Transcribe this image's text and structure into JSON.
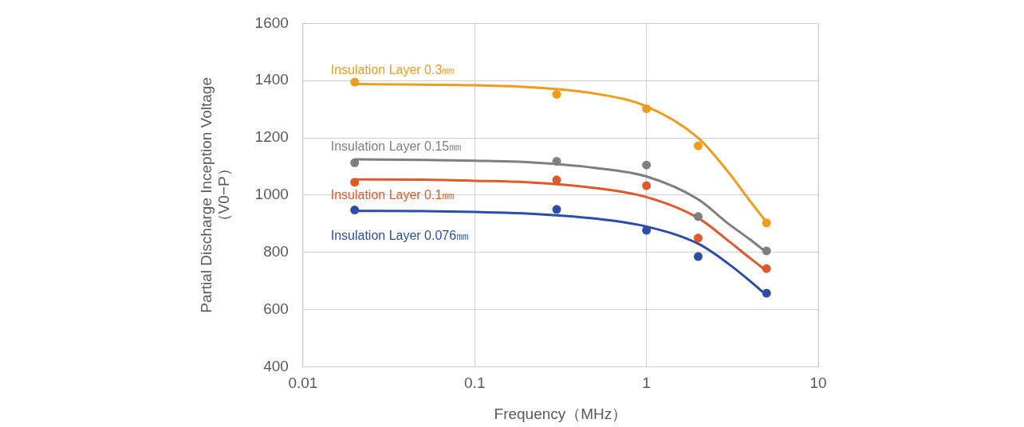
{
  "chart_data": {
    "type": "scatter",
    "x_label": "Frequency（MHz）",
    "y_label": [
      "Partial Discharge Inception Voltage",
      "（V0−P）"
    ],
    "log": "x",
    "xlim": [
      0.01,
      10
    ],
    "xticks": [
      0.01,
      0.1,
      1,
      10
    ],
    "ylim": [
      400,
      1600
    ],
    "yticks": [
      400,
      600,
      800,
      1000,
      1200,
      1400,
      1600
    ],
    "grid": true,
    "series": [
      {
        "name": "Insulation Layer 0.3㎜",
        "color": "#ED9C1B",
        "marker": "circle",
        "line_style": "solid",
        "x": [
          0.02,
          0.3,
          1,
          2,
          5
        ],
        "values": [
          1395,
          1352,
          1302,
          1172,
          903
        ],
        "curve": {
          "x": [
            0.02,
            0.05,
            0.1,
            0.2,
            0.5,
            1,
            2,
            3,
            4,
            5
          ],
          "values": [
            1388,
            1386,
            1384,
            1378,
            1355,
            1310,
            1200,
            1080,
            980,
            905
          ]
        }
      },
      {
        "name": "Insulation Layer 0.15㎜",
        "color": "#7F7F7F",
        "marker": "circle",
        "line_style": "solid",
        "x": [
          0.02,
          0.3,
          1,
          2,
          5
        ],
        "values": [
          1113,
          1118,
          1105,
          925,
          805
        ],
        "curve": {
          "x": [
            0.02,
            0.05,
            0.1,
            0.2,
            0.5,
            1,
            2,
            3,
            4,
            5
          ],
          "values": [
            1125,
            1123,
            1120,
            1115,
            1095,
            1065,
            985,
            900,
            845,
            800
          ]
        }
      },
      {
        "name": "Insulation Layer 0.1㎜",
        "color": "#E0592A",
        "marker": "circle",
        "line_style": "solid",
        "x": [
          0.02,
          0.3,
          1,
          2,
          5
        ],
        "values": [
          1045,
          1053,
          1033,
          850,
          743
        ],
        "curve": {
          "x": [
            0.02,
            0.05,
            0.1,
            0.2,
            0.5,
            1,
            2,
            3,
            4,
            5
          ],
          "values": [
            1055,
            1054,
            1050,
            1045,
            1025,
            993,
            920,
            840,
            780,
            735
          ]
        }
      },
      {
        "name": "Insulation Layer 0.076㎜",
        "color": "#2D4EA6",
        "marker": "circle",
        "line_style": "solid",
        "x": [
          0.02,
          0.3,
          1,
          2,
          5
        ],
        "values": [
          948,
          950,
          877,
          785,
          657
        ],
        "curve": {
          "x": [
            0.02,
            0.05,
            0.1,
            0.2,
            0.5,
            1,
            2,
            3,
            4,
            5
          ],
          "values": [
            945,
            944,
            941,
            936,
            918,
            890,
            830,
            760,
            700,
            650
          ]
        }
      }
    ]
  }
}
